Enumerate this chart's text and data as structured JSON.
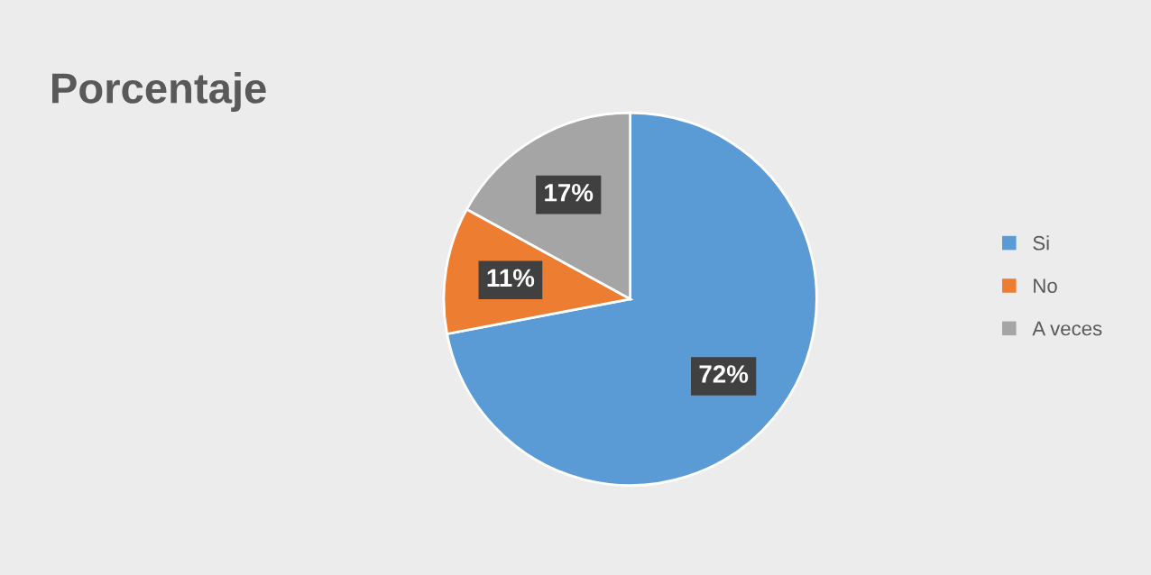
{
  "chart_data": {
    "type": "pie",
    "title": "Porcentaje",
    "categories": [
      "Si",
      "No",
      "A veces"
    ],
    "values": [
      72,
      11,
      17
    ],
    "colors": [
      "#5b9bd5",
      "#ed7d31",
      "#a5a5a5"
    ],
    "value_labels": [
      "72%",
      "11%",
      "17%"
    ],
    "legend": "right"
  }
}
